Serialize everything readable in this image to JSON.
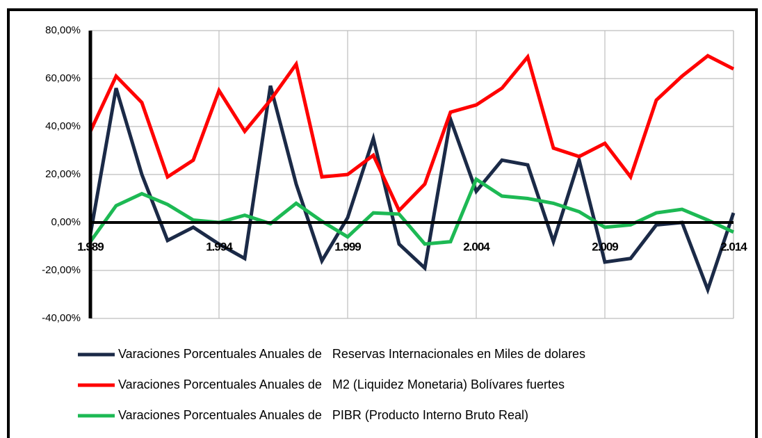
{
  "chart_data": {
    "type": "line",
    "x": [
      1989,
      1990,
      1991,
      1992,
      1993,
      1994,
      1995,
      1996,
      1997,
      1998,
      1999,
      2000,
      2001,
      2002,
      2003,
      2004,
      2005,
      2006,
      2007,
      2008,
      2009,
      2010,
      2011,
      2012,
      2013,
      2014
    ],
    "series": [
      {
        "name": "Varaciones Porcentuales Anuales de   Reservas Internacionales en Miles de dolares",
        "color": "#1b2a47",
        "values": [
          -5,
          56,
          20,
          -7.5,
          -2,
          -9,
          -15,
          57,
          16,
          -16,
          2,
          35,
          -9,
          -19,
          43,
          13,
          26,
          24,
          -8,
          26,
          -16.5,
          -15,
          -1,
          0,
          -28,
          4
        ]
      },
      {
        "name": "Varaciones Porcentuales Anuales de   M2 (Liquidez Monetaria) Bolívares fuertes",
        "color": "#ff0000",
        "values": [
          38,
          61,
          50,
          19,
          26,
          55,
          38,
          51,
          66,
          19,
          20,
          28,
          5,
          16,
          46,
          49,
          56,
          69,
          31,
          27.5,
          33,
          19,
          51,
          61,
          69.5,
          64
        ]
      },
      {
        "name": "Varaciones Porcentuales Anuales de   PIBR (Producto Interno Bruto Real)",
        "color": "#1db954",
        "values": [
          -8,
          7,
          12,
          7.5,
          1,
          0,
          3,
          -0.5,
          8,
          0.5,
          -6,
          4,
          3.5,
          -9,
          -8,
          18,
          11,
          10,
          8,
          4.5,
          -2,
          -1,
          4,
          5.5,
          1,
          -4
        ]
      }
    ],
    "xlim": [
      1989,
      2014
    ],
    "xticks": [
      {
        "value": 1989,
        "label": "1.989"
      },
      {
        "value": 1994,
        "label": "1.994"
      },
      {
        "value": 1999,
        "label": "1.999"
      },
      {
        "value": 2004,
        "label": "2.004"
      },
      {
        "value": 2009,
        "label": "2.009"
      },
      {
        "value": 2014,
        "label": "2.014"
      }
    ],
    "ylim": [
      -40,
      80
    ],
    "yticks": [
      {
        "value": -40,
        "label": "-40,00%"
      },
      {
        "value": -20,
        "label": "-20,00%"
      },
      {
        "value": 0,
        "label": "0,00%"
      },
      {
        "value": 20,
        "label": "20,00%"
      },
      {
        "value": 40,
        "label": "40,00%"
      },
      {
        "value": 60,
        "label": "60,00%"
      },
      {
        "value": 80,
        "label": "80,00%"
      }
    ],
    "grid": true,
    "legend": "bottom"
  }
}
